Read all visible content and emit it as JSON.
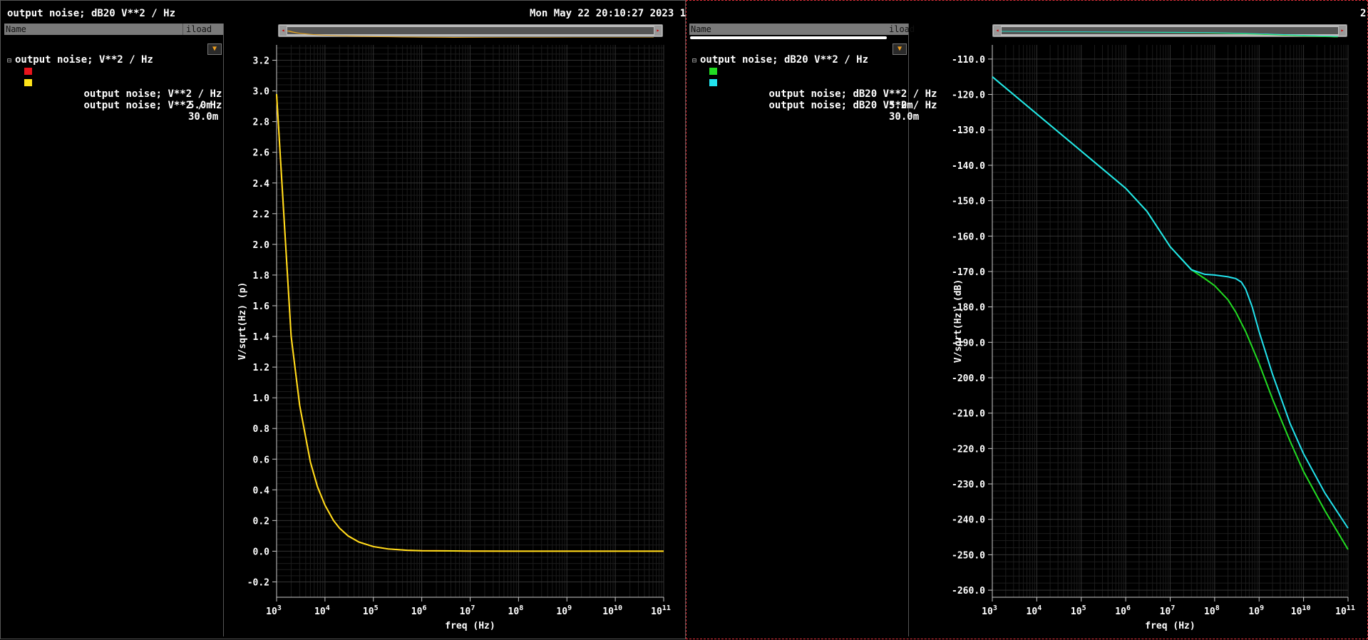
{
  "window1": {
    "title": "output noise; dB20 V**2 / Hz",
    "timestamp": "Mon May 22 20:10:27 2023 1",
    "columns": [
      "Name",
      "iload"
    ],
    "group": "output noise; V**2 / Hz",
    "traces": [
      {
        "label": "output noise; V**2 / Hz",
        "value": "5.0m",
        "color": "#e8141c"
      },
      {
        "label": "output noise; V**2 / Hz",
        "value": "30.0m",
        "color": "#ffe41a"
      }
    ]
  },
  "window2": {
    "number": "2",
    "columns": [
      "Name",
      "iload"
    ],
    "group": "output noise; dB20 V**2 / Hz",
    "traces": [
      {
        "label": "output noise; dB20 V**2 / Hz",
        "value": "5.0m",
        "color": "#22dd22"
      },
      {
        "label": "output noise; dB20 V**2 / Hz",
        "value": "30.0m",
        "color": "#22e4ee"
      }
    ]
  },
  "chart_data": [
    {
      "type": "line",
      "xlabel": "freq (Hz)",
      "ylabel": "V/sqrt(Hz) (p)",
      "xscale": "log",
      "xlim": [
        1000,
        100000000000
      ],
      "ylim": [
        -0.3,
        3.3
      ],
      "yticks": [
        -0.2,
        0.0,
        0.2,
        0.4,
        0.6,
        0.8,
        1.0,
        1.2,
        1.4,
        1.6,
        1.8,
        2.0,
        2.2,
        2.4,
        2.6,
        2.8,
        3.0,
        3.2
      ],
      "ytick_labels": [
        "-0.2",
        "0.0",
        "0.2",
        "0.4",
        "0.6",
        "0.8",
        "1.0",
        "1.2",
        "1.4",
        "1.6",
        "1.8",
        "2.0",
        "2.2",
        "2.4",
        "2.6",
        "2.8",
        "3.0",
        "3.2"
      ],
      "xtick_exponents": [
        "3",
        "4",
        "5",
        "6",
        "7",
        "8",
        "9",
        "10",
        "11"
      ],
      "grid": true,
      "series": [
        {
          "color": "#e8141c",
          "x": [
            1000,
            2000,
            3000,
            5000,
            7000,
            10000,
            15000,
            20000,
            30000,
            50000,
            100000,
            200000,
            500000,
            1000000,
            10000000,
            100000000,
            1000000000,
            10000000000,
            100000000000
          ],
          "y": [
            2.97,
            1.4,
            0.95,
            0.58,
            0.42,
            0.3,
            0.2,
            0.15,
            0.1,
            0.06,
            0.03,
            0.015,
            0.006,
            0.003,
            0.001,
            0.0,
            0.0,
            0.0,
            0.0
          ]
        },
        {
          "color": "#ffe41a",
          "x": [
            1000,
            2000,
            3000,
            5000,
            7000,
            10000,
            15000,
            20000,
            30000,
            50000,
            100000,
            200000,
            500000,
            1000000,
            10000000,
            100000000,
            1000000000,
            10000000000,
            100000000000
          ],
          "y": [
            2.98,
            1.4,
            0.95,
            0.58,
            0.42,
            0.3,
            0.2,
            0.15,
            0.1,
            0.06,
            0.03,
            0.015,
            0.006,
            0.003,
            0.001,
            0.0,
            0.0,
            0.0,
            0.0
          ]
        }
      ]
    },
    {
      "type": "line",
      "xlabel": "freq (Hz)",
      "ylabel": "V/sqrt(Hz) (dB)",
      "xscale": "log",
      "xlim": [
        1000,
        100000000000
      ],
      "ylim": [
        -262,
        -106
      ],
      "yticks": [
        -110,
        -120,
        -130,
        -140,
        -150,
        -160,
        -170,
        -180,
        -190,
        -200,
        -210,
        -220,
        -230,
        -240,
        -250,
        -260
      ],
      "ytick_labels": [
        "-110.0",
        "-120.0",
        "-130.0",
        "-140.0",
        "-150.0",
        "-160.0",
        "-170.0",
        "-180.0",
        "-190.0",
        "-200.0",
        "-210.0",
        "-220.0",
        "-230.0",
        "-240.0",
        "-250.0",
        "-260.0"
      ],
      "xtick_exponents": [
        "3",
        "4",
        "5",
        "6",
        "7",
        "8",
        "9",
        "10",
        "11"
      ],
      "grid": true,
      "series": [
        {
          "color": "#22dd22",
          "x": [
            1000,
            10000,
            100000,
            1000000,
            3000000,
            10000000,
            30000000,
            60000000,
            100000000,
            200000000,
            300000000,
            500000000,
            1000000000,
            2000000000,
            5000000000,
            10000000000,
            30000000000,
            100000000000
          ],
          "y": [
            -115,
            -125.5,
            -136,
            -146.5,
            -153,
            -163,
            -169.5,
            -172,
            -174,
            -178,
            -181.5,
            -187,
            -196,
            -206,
            -218,
            -226.5,
            -237.5,
            -248.5
          ]
        },
        {
          "color": "#22e4ee",
          "x": [
            1000,
            10000,
            100000,
            1000000,
            3000000,
            10000000,
            30000000,
            60000000,
            100000000,
            200000000,
            300000000,
            400000000,
            500000000,
            700000000,
            1000000000,
            2000000000,
            5000000000,
            10000000000,
            30000000000,
            100000000000
          ],
          "y": [
            -115,
            -125.5,
            -136,
            -146.5,
            -153,
            -163,
            -169.5,
            -170.8,
            -171,
            -171.5,
            -172,
            -173,
            -175,
            -180,
            -187,
            -199,
            -213,
            -221.5,
            -232.5,
            -242.5
          ]
        }
      ]
    }
  ]
}
